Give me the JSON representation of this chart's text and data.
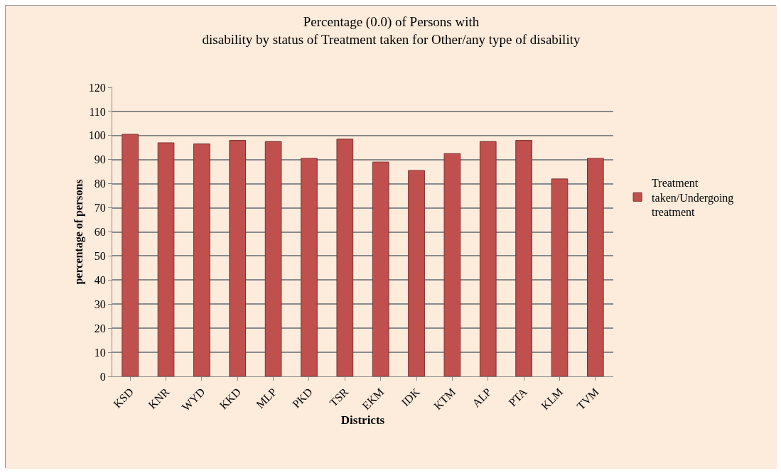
{
  "chart_data": {
    "type": "bar",
    "title": "Percentage (0.0) of Persons with\ndisability by status of Treatment taken for Other/any type of disability",
    "xlabel": "Districts",
    "ylabel": "percentage of persons",
    "categories": [
      "KSD",
      "KNR",
      "WYD",
      "KKD",
      "MLP",
      "PKD",
      "TSR",
      "EKM",
      "IDK",
      "KTM",
      "ALP",
      "PTA",
      "KLM",
      "TVM"
    ],
    "series": [
      {
        "name": "Treatment\ntaken/Undergoing\ntreatment",
        "color": "#c0504d",
        "values": [
          100.5,
          97,
          96.5,
          98,
          97.5,
          90.5,
          98.5,
          89,
          85.5,
          92.5,
          97.5,
          98,
          82,
          90.5
        ]
      }
    ],
    "ylim": [
      0,
      120
    ],
    "yticks": [
      0,
      10,
      20,
      30,
      40,
      50,
      60,
      70,
      80,
      90,
      100,
      110,
      120
    ],
    "grid": "y",
    "legend": "right"
  }
}
